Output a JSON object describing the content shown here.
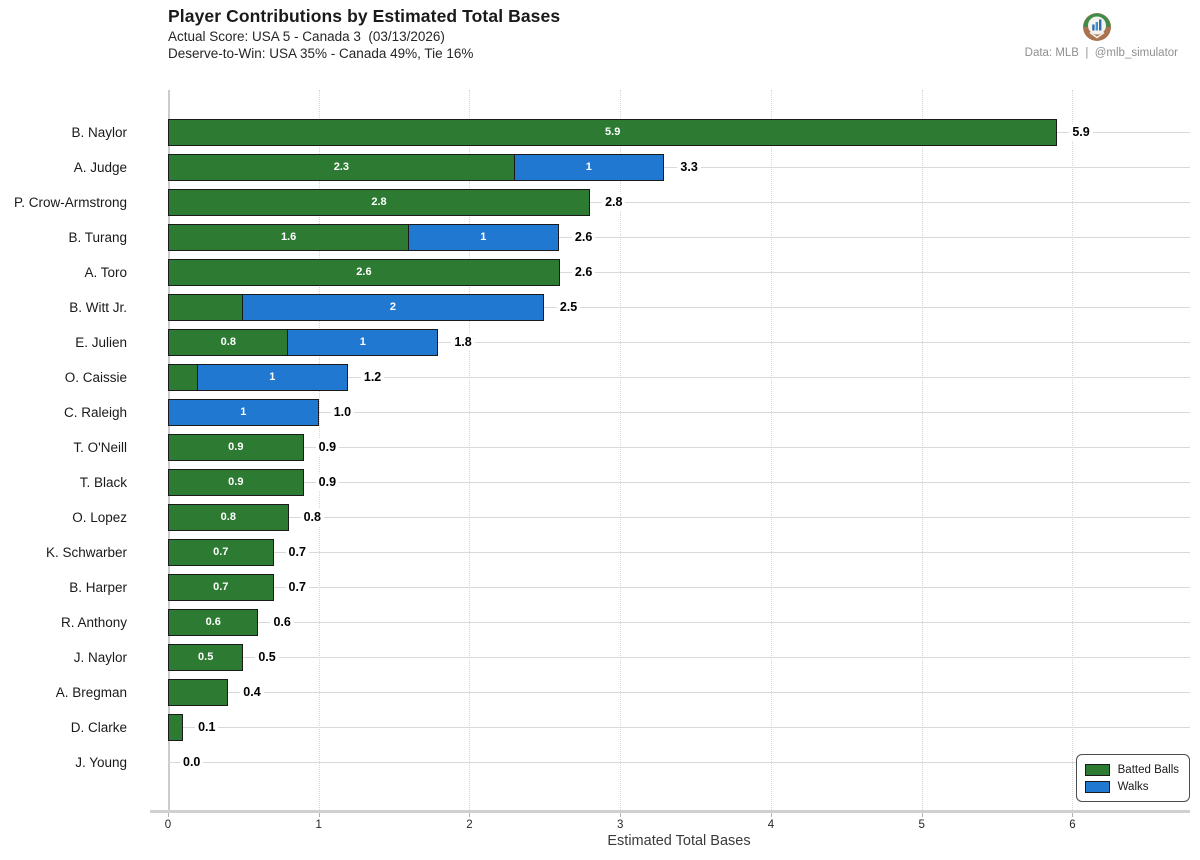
{
  "header": {
    "title": "Player Contributions by Estimated Total Bases",
    "subtitle_line1": "Actual Score: USA 5 - Canada 3  (03/13/2026)",
    "subtitle_line2": "Deserve-to-Win: USA 35% - Canada 49%, Tie 16%",
    "attribution": "Data: MLB  |  @mlb_simulator"
  },
  "colors": {
    "batted_balls": "#2d7b33",
    "walks": "#2078d0",
    "bar_edge": "#1a1a1a",
    "grid": "#d9d9d9"
  },
  "legend": {
    "position": "bottom-right",
    "items": [
      {
        "label": "Batted Balls",
        "color": "#2d7b33"
      },
      {
        "label": "Walks",
        "color": "#2078d0"
      }
    ]
  },
  "chart_data": {
    "type": "bar",
    "orientation": "horizontal",
    "stacked": true,
    "title": "Player Contributions by Estimated Total Bases",
    "xlabel": "Estimated Total Bases",
    "ylabel": "",
    "xlim": [
      0,
      6.78
    ],
    "xticks": [
      0,
      1,
      2,
      3,
      4,
      5,
      6
    ],
    "grid": "vertical-dotted",
    "legend_position": "lower right",
    "categories": [
      "B. Naylor",
      "A. Judge",
      "P. Crow-Armstrong",
      "B. Turang",
      "A. Toro",
      "B. Witt Jr.",
      "E. Julien",
      "O. Caissie",
      "C. Raleigh",
      "T. O'Neill",
      "T. Black",
      "O. Lopez",
      "K. Schwarber",
      "B. Harper",
      "R. Anthony",
      "J. Naylor",
      "A. Bregman",
      "D. Clarke",
      "J. Young"
    ],
    "series": [
      {
        "name": "Batted Balls",
        "color": "#2d7b33",
        "values": [
          5.9,
          2.3,
          2.8,
          1.6,
          2.6,
          0.5,
          0.8,
          0.2,
          0,
          0.9,
          0.9,
          0.8,
          0.7,
          0.7,
          0.6,
          0.5,
          0.4,
          0.1,
          0
        ]
      },
      {
        "name": "Walks",
        "color": "#2078d0",
        "values": [
          0,
          1,
          0,
          1,
          0,
          2,
          1,
          1,
          1,
          0,
          0,
          0,
          0,
          0,
          0,
          0,
          0,
          0,
          0
        ]
      }
    ],
    "segment_labels": [
      [
        "5.9",
        ""
      ],
      [
        "2.3",
        "1"
      ],
      [
        "2.8",
        ""
      ],
      [
        "1.6",
        "1"
      ],
      [
        "2.6",
        ""
      ],
      [
        "",
        "2"
      ],
      [
        "0.8",
        "1"
      ],
      [
        "",
        "1"
      ],
      [
        "",
        "1"
      ],
      [
        "0.9",
        ""
      ],
      [
        "0.9",
        ""
      ],
      [
        "0.8",
        ""
      ],
      [
        "0.7",
        ""
      ],
      [
        "0.7",
        ""
      ],
      [
        "0.6",
        ""
      ],
      [
        "0.5",
        ""
      ],
      [
        "",
        ""
      ],
      [
        "",
        ""
      ],
      [
        "",
        ""
      ]
    ],
    "totals": [
      "5.9",
      "3.3",
      "2.8",
      "2.6",
      "2.6",
      "2.5",
      "1.8",
      "1.2",
      "1.0",
      "0.9",
      "0.9",
      "0.8",
      "0.7",
      "0.7",
      "0.6",
      "0.5",
      "0.4",
      "0.1",
      "0.0"
    ]
  }
}
